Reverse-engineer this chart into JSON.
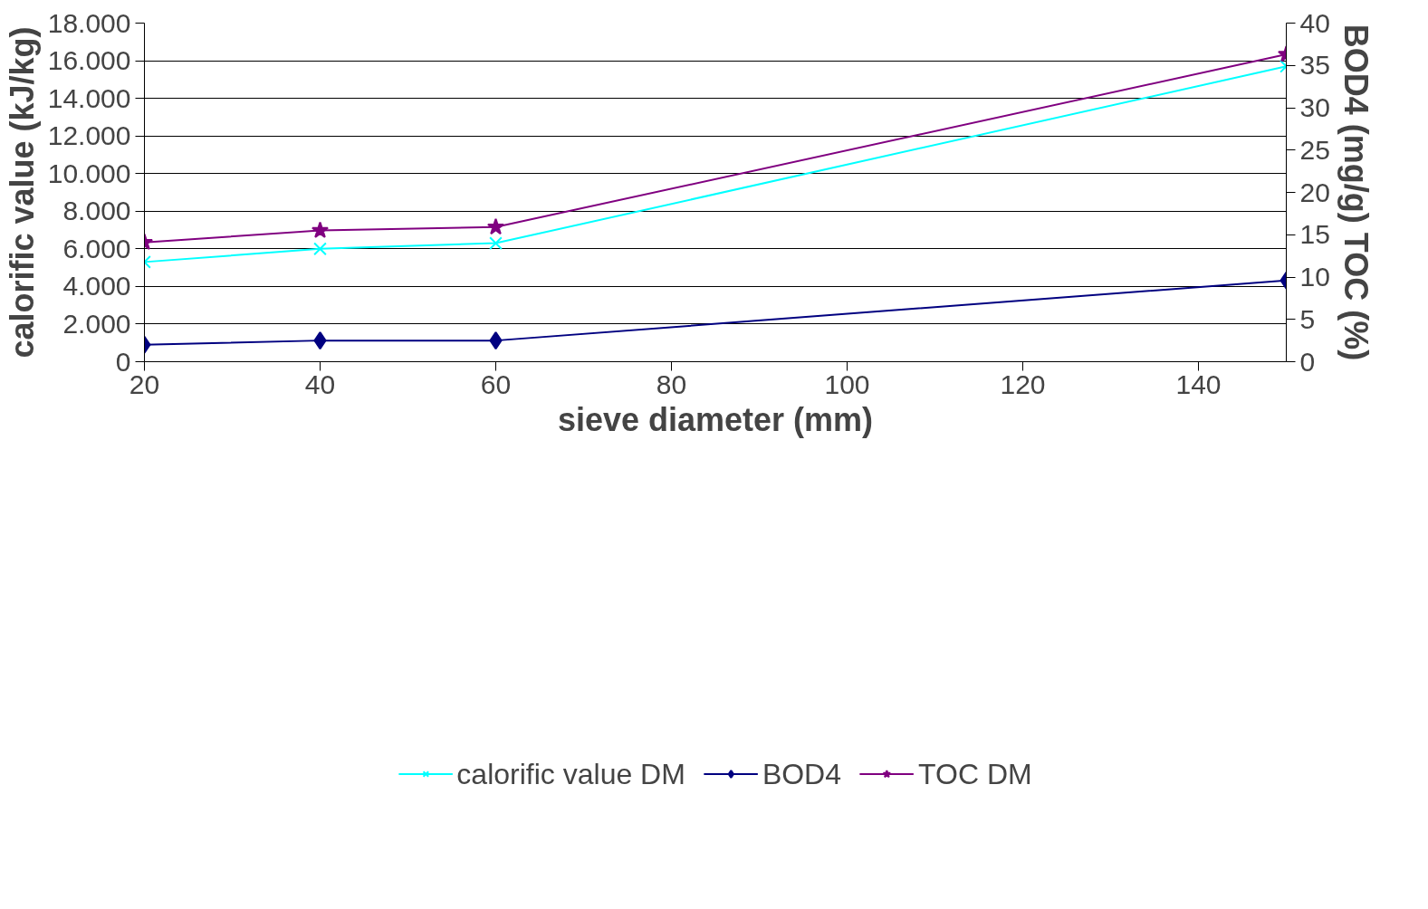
{
  "chart_data": {
    "type": "line",
    "xlabel": "sieve diameter (mm)",
    "ylabel": "calorific value (kJ/kg)",
    "y2label": "BOD4 (mg/g) TOC (%)",
    "x": [
      20,
      40,
      60,
      150
    ],
    "series": [
      {
        "name": "calorific value DM",
        "color": "#00ffff",
        "marker": "cross",
        "values": [
          5300,
          6000,
          6300,
          15700
        ]
      },
      {
        "name": "BOD4",
        "color": "#000080",
        "marker": "diamond",
        "axis": "y2",
        "values": [
          2.0,
          2.5,
          2.5,
          9.6
        ]
      },
      {
        "name": "TOC DM",
        "color": "#800080",
        "marker": "star",
        "axis": "y2",
        "values": [
          14.1,
          15.5,
          15.9,
          36.3
        ]
      }
    ],
    "xlim": [
      20,
      150
    ],
    "xticks": [
      20,
      40,
      60,
      80,
      100,
      120,
      140
    ],
    "ylim": [
      0,
      18000
    ],
    "yticks": [
      0,
      {
        "value": 2000,
        "label": "2.000"
      },
      {
        "value": 4000,
        "label": "4.000"
      },
      {
        "value": 6000,
        "label": "6.000"
      },
      {
        "value": 8000,
        "label": "8.000"
      },
      {
        "value": 10000,
        "label": "10.000"
      },
      {
        "value": 12000,
        "label": "12.000"
      },
      {
        "value": 14000,
        "label": "14.000"
      },
      {
        "value": 16000,
        "label": "16.000"
      },
      {
        "value": 18000,
        "label": "18.000"
      }
    ],
    "y2lim": [
      0,
      40
    ],
    "y2ticks": [
      0,
      5,
      10,
      15,
      20,
      25,
      30,
      35,
      40
    ],
    "grid": "y",
    "legend": "bottom"
  }
}
